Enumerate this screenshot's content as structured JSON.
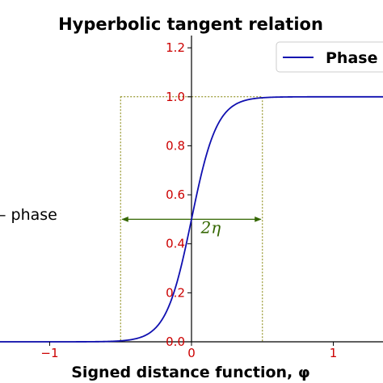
{
  "chart_data": {
    "type": "line",
    "title": "Hyperbolic tangent relation",
    "xlabel": "Signed distance function, φ",
    "ylabel": "– phase",
    "xlim": [
      -1.35,
      1.35
    ],
    "ylim": [
      0.0,
      1.25
    ],
    "xticks": [
      -1,
      0,
      1
    ],
    "xtick_labels": [
      "−1",
      "0",
      "1"
    ],
    "yticks": [
      0.0,
      0.2,
      0.4,
      0.6,
      0.8,
      1.0,
      1.2
    ],
    "ytick_labels": [
      "0.0",
      "0.2",
      "0.4",
      "0.6",
      "0.8",
      "1.0",
      "1.2"
    ],
    "grid": false,
    "legend_position": "top-right",
    "tick_label_color": "#cc0000",
    "series": [
      {
        "name": "Phase",
        "color": "#1010b0",
        "function": "0.5 * (1 + tanh(x / (2 * 0.09)))",
        "eta": 0.09,
        "x": [
          -1.35,
          -1.0,
          -0.5,
          -0.4,
          -0.3,
          -0.2,
          -0.1,
          0.0,
          0.1,
          0.2,
          0.3,
          0.4,
          0.5,
          1.0,
          1.35
        ],
        "y": [
          0.0,
          0.0,
          0.004,
          0.012,
          0.035,
          0.098,
          0.248,
          0.5,
          0.752,
          0.902,
          0.965,
          0.988,
          0.996,
          1.0,
          1.0
        ]
      }
    ],
    "annotations": {
      "interface_box": {
        "x_range": [
          -0.5,
          0.5
        ],
        "y_range": [
          0.0,
          1.0
        ],
        "color": "#808000"
      },
      "width_arrow": {
        "x_range": [
          -0.5,
          0.5
        ],
        "y": 0.5,
        "color": "#336600"
      },
      "width_label": {
        "text": "2η",
        "x": 0.1,
        "y": 0.45,
        "color": "#336600"
      }
    }
  }
}
